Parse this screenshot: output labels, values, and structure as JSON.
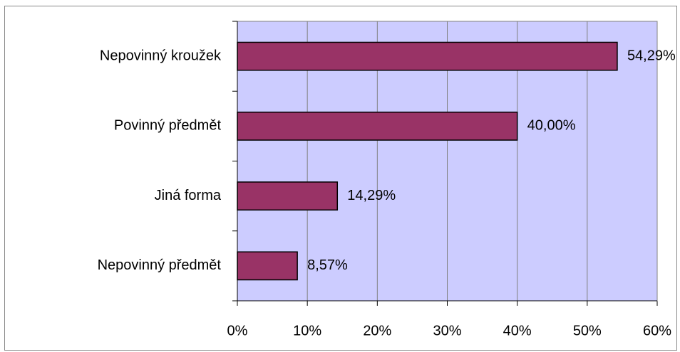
{
  "chart_data": {
    "type": "barh",
    "categories": [
      "Nepovinný kroužek",
      "Povinný předmět",
      "Jiná forma",
      "Nepovinný předmět"
    ],
    "values": [
      54.29,
      40.0,
      14.29,
      8.57
    ],
    "value_labels": [
      "54,29%",
      "40,00%",
      "14,29%",
      "8,57%"
    ],
    "color": "#993366",
    "xlim": [
      0,
      60
    ],
    "xticks": [
      {
        "value": 0,
        "label": "0%"
      },
      {
        "value": 10,
        "label": "10%"
      },
      {
        "value": 20,
        "label": "20%"
      },
      {
        "value": 30,
        "label": "30%"
      },
      {
        "value": 40,
        "label": "40%"
      },
      {
        "value": 50,
        "label": "50%"
      },
      {
        "value": 60,
        "label": "60%"
      }
    ],
    "grid": true,
    "plot_background": "#ccccff"
  }
}
